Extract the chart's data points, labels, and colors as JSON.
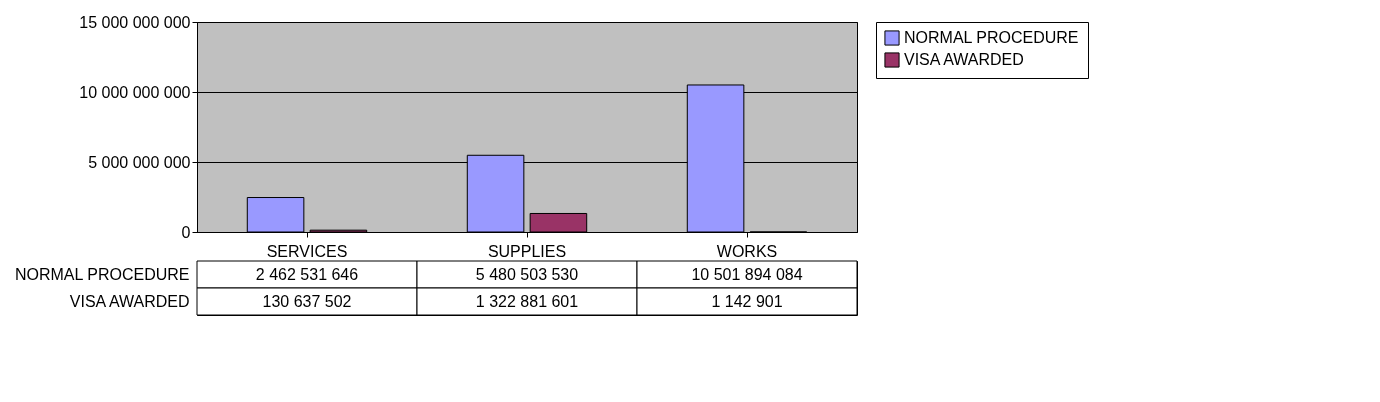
{
  "chart_data": {
    "type": "bar",
    "categories": [
      "SERVICES",
      "SUPPLIES",
      "WORKS"
    ],
    "series": [
      {
        "name": "NORMAL PROCEDURE",
        "color": "#9999ff",
        "values": [
          2462531646,
          5480503530,
          10501894084
        ],
        "value_labels": [
          "2 462 531 646",
          "5 480 503 530",
          "10 501 894 084"
        ]
      },
      {
        "name": "VISA AWARDED",
        "color": "#993366",
        "values": [
          130637502,
          1322881601,
          1142901
        ],
        "value_labels": [
          "130 637 502",
          "1 322 881 601",
          "1 142 901"
        ]
      }
    ],
    "ylim": [
      0,
      15000000000
    ],
    "yticks": [
      {
        "value": 0,
        "label": "0"
      },
      {
        "value": 5000000000,
        "label": "5 000 000 000"
      },
      {
        "value": 10000000000,
        "label": "10 000 000 000"
      },
      {
        "value": 15000000000,
        "label": "15 000 000 000"
      }
    ],
    "grid": "y",
    "legend": "right"
  }
}
